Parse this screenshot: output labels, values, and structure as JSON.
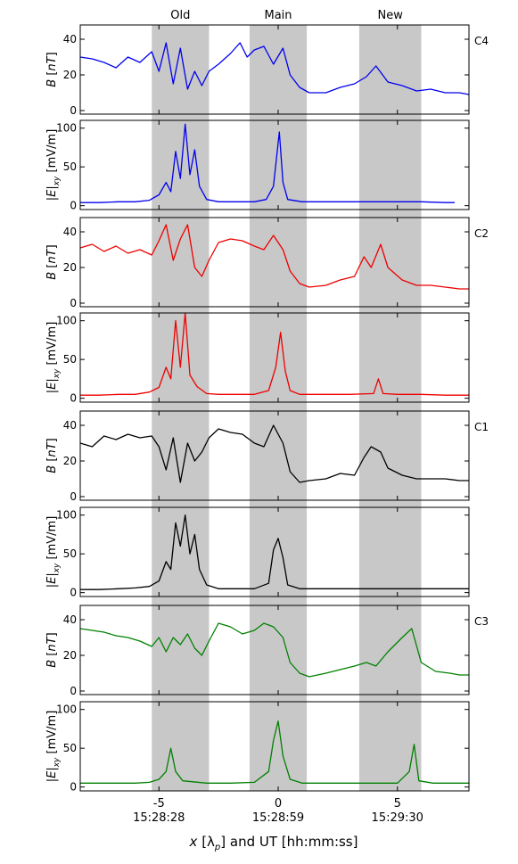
{
  "figure": {
    "band_labels": [
      "Old",
      "Main",
      "New"
    ],
    "xlabel_var": "x",
    "xlabel_unit": "[λ",
    "xlabel_sub": "p",
    "xlabel_rest": "] and UT [hh:mm:ss]"
  },
  "chart_data": {
    "type": "line",
    "x_range": [
      -8.3,
      8.0
    ],
    "shaded_bands": [
      [
        -5.3,
        -2.9
      ],
      [
        -1.2,
        1.2
      ],
      [
        3.4,
        6.0
      ]
    ],
    "x_ticks": [
      {
        "x": -5,
        "label": "-5",
        "time": "15:28:28"
      },
      {
        "x": 0,
        "label": "0",
        "time": "15:28:59"
      },
      {
        "x": 5,
        "label": "5",
        "time": "15:29:30"
      }
    ],
    "panels": [
      {
        "kind": "B",
        "spacecraft": "C4",
        "color": "#0000ee",
        "ylim": [
          -2,
          48
        ],
        "yticks": [
          0,
          20,
          40
        ],
        "ylabel_var": "B",
        "ylabel_unit": "nT",
        "series": [
          [
            -8.3,
            30
          ],
          [
            -7.8,
            29
          ],
          [
            -7.3,
            27
          ],
          [
            -6.8,
            24
          ],
          [
            -6.3,
            30
          ],
          [
            -5.8,
            27
          ],
          [
            -5.3,
            33
          ],
          [
            -5.0,
            22
          ],
          [
            -4.7,
            38
          ],
          [
            -4.4,
            15
          ],
          [
            -4.1,
            35
          ],
          [
            -3.8,
            12
          ],
          [
            -3.5,
            22
          ],
          [
            -3.2,
            14
          ],
          [
            -2.9,
            22
          ],
          [
            -2.5,
            26
          ],
          [
            -2.0,
            32
          ],
          [
            -1.6,
            38
          ],
          [
            -1.3,
            30
          ],
          [
            -1.0,
            34
          ],
          [
            -0.6,
            36
          ],
          [
            -0.2,
            26
          ],
          [
            0.2,
            35
          ],
          [
            0.5,
            20
          ],
          [
            0.9,
            13
          ],
          [
            1.3,
            10
          ],
          [
            2.0,
            10
          ],
          [
            2.6,
            13
          ],
          [
            3.2,
            15
          ],
          [
            3.7,
            19
          ],
          [
            4.1,
            25
          ],
          [
            4.6,
            16
          ],
          [
            5.2,
            14
          ],
          [
            5.8,
            11
          ],
          [
            6.4,
            12
          ],
          [
            7.0,
            10
          ],
          [
            7.6,
            10
          ],
          [
            8.0,
            9
          ]
        ]
      },
      {
        "kind": "E",
        "spacecraft": "",
        "color": "#0000ee",
        "ylim": [
          -5,
          110
        ],
        "yticks": [
          0,
          50,
          100
        ],
        "ylabel_var": "E",
        "ylabel_sub": "xy",
        "ylabel_unit": "mV/m",
        "series": [
          [
            -8.3,
            4
          ],
          [
            -7.5,
            4
          ],
          [
            -6.7,
            5
          ],
          [
            -6.0,
            5
          ],
          [
            -5.4,
            7
          ],
          [
            -5.0,
            14
          ],
          [
            -4.7,
            30
          ],
          [
            -4.5,
            18
          ],
          [
            -4.3,
            70
          ],
          [
            -4.1,
            35
          ],
          [
            -3.9,
            105
          ],
          [
            -3.7,
            40
          ],
          [
            -3.5,
            72
          ],
          [
            -3.3,
            25
          ],
          [
            -3.0,
            8
          ],
          [
            -2.5,
            5
          ],
          [
            -1.8,
            5
          ],
          [
            -1.0,
            5
          ],
          [
            -0.5,
            8
          ],
          [
            -0.2,
            25
          ],
          [
            0.05,
            95
          ],
          [
            0.2,
            30
          ],
          [
            0.4,
            8
          ],
          [
            1.0,
            5
          ],
          [
            2.0,
            5
          ],
          [
            3.0,
            5
          ],
          [
            4.0,
            5
          ],
          [
            5.0,
            5
          ],
          [
            6.0,
            5
          ],
          [
            7.0,
            4
          ],
          [
            7.4,
            4
          ]
        ]
      },
      {
        "kind": "B",
        "spacecraft": "C2",
        "color": "#ee0000",
        "ylim": [
          -2,
          48
        ],
        "yticks": [
          0,
          20,
          40
        ],
        "ylabel_var": "B",
        "ylabel_unit": "nT",
        "series": [
          [
            -8.3,
            31
          ],
          [
            -7.8,
            33
          ],
          [
            -7.3,
            29
          ],
          [
            -6.8,
            32
          ],
          [
            -6.3,
            28
          ],
          [
            -5.8,
            30
          ],
          [
            -5.3,
            27
          ],
          [
            -5.0,
            35
          ],
          [
            -4.7,
            44
          ],
          [
            -4.4,
            24
          ],
          [
            -4.1,
            36
          ],
          [
            -3.8,
            44
          ],
          [
            -3.5,
            20
          ],
          [
            -3.2,
            15
          ],
          [
            -2.9,
            24
          ],
          [
            -2.5,
            34
          ],
          [
            -2.0,
            36
          ],
          [
            -1.5,
            35
          ],
          [
            -1.0,
            32
          ],
          [
            -0.6,
            30
          ],
          [
            -0.2,
            38
          ],
          [
            0.2,
            30
          ],
          [
            0.5,
            18
          ],
          [
            0.9,
            11
          ],
          [
            1.3,
            9
          ],
          [
            2.0,
            10
          ],
          [
            2.6,
            13
          ],
          [
            3.2,
            15
          ],
          [
            3.6,
            26
          ],
          [
            3.9,
            20
          ],
          [
            4.3,
            33
          ],
          [
            4.6,
            20
          ],
          [
            5.2,
            13
          ],
          [
            5.8,
            10
          ],
          [
            6.4,
            10
          ],
          [
            7.0,
            9
          ],
          [
            7.6,
            8
          ],
          [
            8.0,
            8
          ]
        ]
      },
      {
        "kind": "E",
        "spacecraft": "",
        "color": "#ee0000",
        "ylim": [
          -5,
          110
        ],
        "yticks": [
          0,
          50,
          100
        ],
        "ylabel_var": "E",
        "ylabel_sub": "xy",
        "ylabel_unit": "mV/m",
        "series": [
          [
            -8.3,
            4
          ],
          [
            -7.5,
            4
          ],
          [
            -6.7,
            5
          ],
          [
            -6.0,
            5
          ],
          [
            -5.4,
            8
          ],
          [
            -5.0,
            14
          ],
          [
            -4.7,
            40
          ],
          [
            -4.5,
            25
          ],
          [
            -4.3,
            100
          ],
          [
            -4.1,
            40
          ],
          [
            -3.9,
            110
          ],
          [
            -3.7,
            30
          ],
          [
            -3.4,
            15
          ],
          [
            -3.0,
            6
          ],
          [
            -2.5,
            5
          ],
          [
            -1.8,
            5
          ],
          [
            -1.0,
            5
          ],
          [
            -0.4,
            10
          ],
          [
            -0.1,
            40
          ],
          [
            0.1,
            85
          ],
          [
            0.3,
            35
          ],
          [
            0.5,
            10
          ],
          [
            0.9,
            5
          ],
          [
            2.0,
            5
          ],
          [
            3.0,
            5
          ],
          [
            4.0,
            6
          ],
          [
            4.2,
            25
          ],
          [
            4.4,
            6
          ],
          [
            5.0,
            5
          ],
          [
            6.0,
            5
          ],
          [
            7.0,
            4
          ],
          [
            8.0,
            4
          ]
        ]
      },
      {
        "kind": "B",
        "spacecraft": "C1",
        "color": "#000000",
        "ylim": [
          -2,
          48
        ],
        "yticks": [
          0,
          20,
          40
        ],
        "ylabel_var": "B",
        "ylabel_unit": "nT",
        "series": [
          [
            -8.3,
            30
          ],
          [
            -7.8,
            28
          ],
          [
            -7.3,
            34
          ],
          [
            -6.8,
            32
          ],
          [
            -6.3,
            35
          ],
          [
            -5.8,
            33
          ],
          [
            -5.3,
            34
          ],
          [
            -5.0,
            28
          ],
          [
            -4.7,
            15
          ],
          [
            -4.4,
            33
          ],
          [
            -4.1,
            8
          ],
          [
            -3.8,
            30
          ],
          [
            -3.5,
            20
          ],
          [
            -3.2,
            25
          ],
          [
            -2.9,
            33
          ],
          [
            -2.5,
            38
          ],
          [
            -2.0,
            36
          ],
          [
            -1.5,
            35
          ],
          [
            -1.0,
            30
          ],
          [
            -0.6,
            28
          ],
          [
            -0.2,
            40
          ],
          [
            0.2,
            30
          ],
          [
            0.5,
            14
          ],
          [
            0.9,
            8
          ],
          [
            1.3,
            9
          ],
          [
            2.0,
            10
          ],
          [
            2.6,
            13
          ],
          [
            3.2,
            12
          ],
          [
            3.6,
            22
          ],
          [
            3.9,
            28
          ],
          [
            4.3,
            25
          ],
          [
            4.6,
            16
          ],
          [
            5.2,
            12
          ],
          [
            5.8,
            10
          ],
          [
            6.4,
            10
          ],
          [
            7.0,
            10
          ],
          [
            7.6,
            9
          ],
          [
            8.0,
            9
          ]
        ]
      },
      {
        "kind": "E",
        "spacecraft": "",
        "color": "#000000",
        "ylim": [
          -5,
          110
        ],
        "yticks": [
          0,
          50,
          100
        ],
        "ylabel_var": "E",
        "ylabel_sub": "xy",
        "ylabel_unit": "mV/m",
        "series": [
          [
            -8.3,
            4
          ],
          [
            -7.5,
            4
          ],
          [
            -6.7,
            5
          ],
          [
            -6.0,
            6
          ],
          [
            -5.4,
            8
          ],
          [
            -5.0,
            15
          ],
          [
            -4.7,
            40
          ],
          [
            -4.5,
            30
          ],
          [
            -4.3,
            90
          ],
          [
            -4.1,
            60
          ],
          [
            -3.9,
            100
          ],
          [
            -3.7,
            50
          ],
          [
            -3.5,
            75
          ],
          [
            -3.3,
            30
          ],
          [
            -3.0,
            10
          ],
          [
            -2.5,
            5
          ],
          [
            -1.8,
            5
          ],
          [
            -1.0,
            5
          ],
          [
            -0.4,
            12
          ],
          [
            -0.2,
            55
          ],
          [
            0.0,
            70
          ],
          [
            0.2,
            45
          ],
          [
            0.4,
            10
          ],
          [
            0.9,
            5
          ],
          [
            2.0,
            5
          ],
          [
            3.0,
            5
          ],
          [
            4.0,
            5
          ],
          [
            5.0,
            5
          ],
          [
            6.0,
            5
          ],
          [
            7.0,
            5
          ],
          [
            8.0,
            5
          ]
        ]
      },
      {
        "kind": "B",
        "spacecraft": "C3",
        "color": "#008000",
        "ylim": [
          -2,
          48
        ],
        "yticks": [
          0,
          20,
          40
        ],
        "ylabel_var": "B",
        "ylabel_unit": "nT",
        "series": [
          [
            -8.3,
            35
          ],
          [
            -7.8,
            34
          ],
          [
            -7.3,
            33
          ],
          [
            -6.8,
            31
          ],
          [
            -6.3,
            30
          ],
          [
            -5.8,
            28
          ],
          [
            -5.3,
            25
          ],
          [
            -5.0,
            30
          ],
          [
            -4.7,
            22
          ],
          [
            -4.4,
            30
          ],
          [
            -4.1,
            26
          ],
          [
            -3.8,
            32
          ],
          [
            -3.5,
            24
          ],
          [
            -3.2,
            20
          ],
          [
            -2.9,
            28
          ],
          [
            -2.5,
            38
          ],
          [
            -2.0,
            36
          ],
          [
            -1.5,
            32
          ],
          [
            -1.0,
            34
          ],
          [
            -0.6,
            38
          ],
          [
            -0.2,
            36
          ],
          [
            0.2,
            30
          ],
          [
            0.5,
            16
          ],
          [
            0.9,
            10
          ],
          [
            1.3,
            8
          ],
          [
            2.0,
            10
          ],
          [
            2.6,
            12
          ],
          [
            3.2,
            14
          ],
          [
            3.7,
            16
          ],
          [
            4.1,
            14
          ],
          [
            4.6,
            22
          ],
          [
            5.2,
            30
          ],
          [
            5.6,
            35
          ],
          [
            6.0,
            16
          ],
          [
            6.6,
            11
          ],
          [
            7.2,
            10
          ],
          [
            7.6,
            9
          ],
          [
            8.0,
            9
          ]
        ]
      },
      {
        "kind": "E",
        "spacecraft": "",
        "color": "#008000",
        "ylim": [
          -5,
          110
        ],
        "yticks": [
          0,
          50,
          100
        ],
        "ylabel_var": "E",
        "ylabel_sub": "xy",
        "ylabel_unit": "mV/m",
        "series": [
          [
            -8.3,
            5
          ],
          [
            -7.5,
            5
          ],
          [
            -6.7,
            5
          ],
          [
            -6.0,
            5
          ],
          [
            -5.4,
            6
          ],
          [
            -5.0,
            10
          ],
          [
            -4.7,
            20
          ],
          [
            -4.5,
            50
          ],
          [
            -4.3,
            20
          ],
          [
            -4.0,
            8
          ],
          [
            -3.0,
            5
          ],
          [
            -2.0,
            5
          ],
          [
            -1.0,
            6
          ],
          [
            -0.4,
            20
          ],
          [
            -0.2,
            60
          ],
          [
            0.0,
            85
          ],
          [
            0.2,
            40
          ],
          [
            0.5,
            10
          ],
          [
            1.0,
            5
          ],
          [
            2.0,
            5
          ],
          [
            3.0,
            5
          ],
          [
            4.0,
            5
          ],
          [
            5.0,
            5
          ],
          [
            5.5,
            20
          ],
          [
            5.7,
            55
          ],
          [
            5.9,
            8
          ],
          [
            6.5,
            5
          ],
          [
            7.5,
            5
          ],
          [
            8.0,
            5
          ]
        ]
      }
    ]
  }
}
